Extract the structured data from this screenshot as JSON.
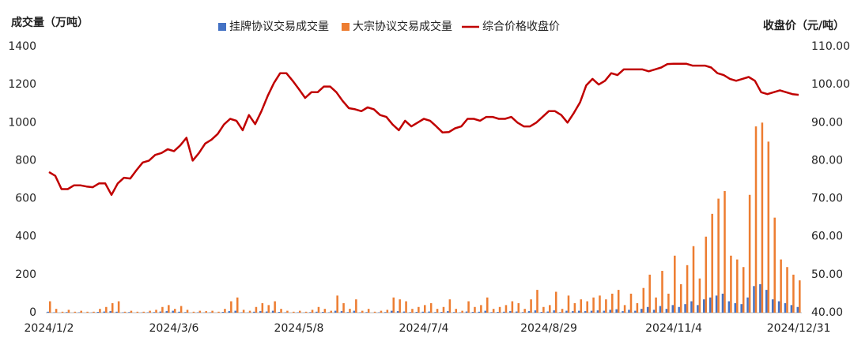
{
  "chart_data": {
    "type": "bar",
    "y_label": "成交量（万吨）",
    "y2_label": "收盘价（元/吨）",
    "categories": [
      "2024/1/2",
      null,
      null,
      null,
      null,
      null,
      null,
      null,
      null,
      null,
      null,
      null,
      null,
      null,
      null,
      null,
      null,
      null,
      null,
      null,
      "2024/3/6",
      null,
      null,
      null,
      null,
      null,
      null,
      null,
      null,
      null,
      null,
      null,
      null,
      null,
      null,
      null,
      null,
      null,
      null,
      null,
      "2024/5/8",
      null,
      null,
      null,
      null,
      null,
      null,
      null,
      null,
      null,
      null,
      null,
      null,
      null,
      null,
      null,
      null,
      null,
      null,
      null,
      "2024/7/4",
      null,
      null,
      null,
      null,
      null,
      null,
      null,
      null,
      null,
      null,
      null,
      null,
      null,
      null,
      null,
      null,
      null,
      null,
      null,
      "2024/8/29",
      null,
      null,
      null,
      null,
      null,
      null,
      null,
      null,
      null,
      null,
      null,
      null,
      null,
      null,
      null,
      null,
      null,
      null,
      null,
      "2024/11/4",
      null,
      null,
      null,
      null,
      null,
      null,
      null,
      null,
      null,
      null,
      null,
      null,
      null,
      null,
      null,
      null,
      null,
      null,
      null,
      "2024/12/31"
    ],
    "series": [
      {
        "name": "挂牌协议交易成交量",
        "color": "#4472c4",
        "type": "bar",
        "values": [
          5,
          2,
          0,
          3,
          0,
          2,
          0,
          1,
          4,
          6,
          8,
          5,
          2,
          3,
          0,
          1,
          2,
          3,
          6,
          8,
          10,
          5,
          3,
          0,
          2,
          1,
          2,
          0,
          4,
          8,
          10,
          2,
          1,
          5,
          8,
          6,
          10,
          4,
          2,
          0,
          2,
          1,
          3,
          5,
          4,
          2,
          10,
          8,
          3,
          10,
          2,
          3,
          0,
          2,
          3,
          10,
          8,
          6,
          3,
          4,
          5,
          6,
          3,
          4,
          8,
          3,
          2,
          6,
          4,
          5,
          10,
          3,
          4,
          5,
          8,
          6,
          3,
          8,
          12,
          4,
          6,
          12,
          3,
          10,
          8,
          10,
          8,
          10,
          12,
          10,
          15,
          18,
          8,
          15,
          10,
          20,
          30,
          15,
          35,
          20,
          40,
          30,
          45,
          60,
          40,
          70,
          80,
          90,
          100,
          60,
          50,
          45,
          80,
          140,
          150,
          120,
          70,
          60,
          50,
          40,
          30
        ]
      },
      {
        "name": "大宗协议交易成交量",
        "color": "#ed7d31",
        "type": "bar",
        "values": [
          60,
          20,
          5,
          15,
          5,
          10,
          5,
          5,
          20,
          30,
          50,
          60,
          5,
          10,
          5,
          5,
          10,
          15,
          30,
          40,
          20,
          35,
          15,
          5,
          10,
          8,
          10,
          5,
          20,
          60,
          80,
          15,
          10,
          30,
          50,
          40,
          60,
          20,
          10,
          5,
          10,
          5,
          15,
          30,
          20,
          10,
          90,
          50,
          20,
          70,
          10,
          20,
          5,
          10,
          15,
          80,
          70,
          60,
          20,
          30,
          40,
          50,
          20,
          30,
          70,
          20,
          10,
          60,
          30,
          40,
          80,
          20,
          30,
          40,
          60,
          50,
          20,
          70,
          120,
          30,
          40,
          110,
          20,
          90,
          50,
          70,
          60,
          80,
          90,
          70,
          100,
          120,
          40,
          100,
          50,
          130,
          200,
          80,
          220,
          100,
          300,
          150,
          250,
          350,
          180,
          400,
          520,
          600,
          640,
          300,
          280,
          240,
          620,
          980,
          1000,
          900,
          500,
          280,
          240,
          200,
          170
        ]
      },
      {
        "name": "综合价格收盘价",
        "color": "#c00000",
        "type": "line",
        "axis": "y2",
        "values": [
          77,
          76,
          72.5,
          72.5,
          73.5,
          73.5,
          73.2,
          73,
          74,
          74,
          71,
          74,
          75.5,
          75.3,
          77.5,
          79.5,
          80,
          81.5,
          82,
          83,
          82.5,
          84,
          86,
          80,
          82,
          84.5,
          85.5,
          87,
          89.5,
          91,
          90.5,
          88,
          92,
          89.6,
          93,
          97,
          100.4,
          103,
          103,
          101,
          98.8,
          96.5,
          98,
          98,
          99.5,
          99.5,
          98,
          95.7,
          93.8,
          93.5,
          93,
          94,
          93.5,
          92,
          91.5,
          89.5,
          88,
          90.5,
          89,
          90,
          91,
          90.5,
          89,
          87.4,
          87.5,
          88.5,
          89,
          91,
          91,
          90.5,
          91.5,
          91.5,
          91,
          91,
          91.5,
          90,
          89,
          89,
          90,
          91.5,
          93,
          93,
          92,
          90,
          92.5,
          95.3,
          99.8,
          101.5,
          100,
          101,
          103,
          102.5,
          104,
          104,
          104,
          104,
          103.5,
          104,
          104.5,
          105.4,
          105.5,
          105.5,
          105.5,
          105,
          105,
          105,
          104.5,
          103,
          102.5,
          101.5,
          101,
          101.5,
          102,
          101,
          98,
          97.5,
          98,
          98.5,
          98,
          97.5,
          97.3
        ]
      }
    ],
    "ylim": [
      0,
      1400
    ],
    "yticks": [
      0,
      200,
      400,
      600,
      800,
      1000,
      1200,
      1400
    ],
    "y2lim": [
      40,
      110
    ],
    "y2ticks": [
      {
        "value": 40,
        "label": "40.00"
      },
      {
        "value": 50,
        "label": "50.00"
      },
      {
        "value": 60,
        "label": "60.00"
      },
      {
        "value": 70,
        "label": "70.00"
      },
      {
        "value": 80,
        "label": "80.00"
      },
      {
        "value": 90,
        "label": "90.00"
      },
      {
        "value": 100,
        "label": "100.00"
      },
      {
        "value": 110,
        "label": "110.00"
      }
    ],
    "grid": false,
    "legend": "top"
  }
}
